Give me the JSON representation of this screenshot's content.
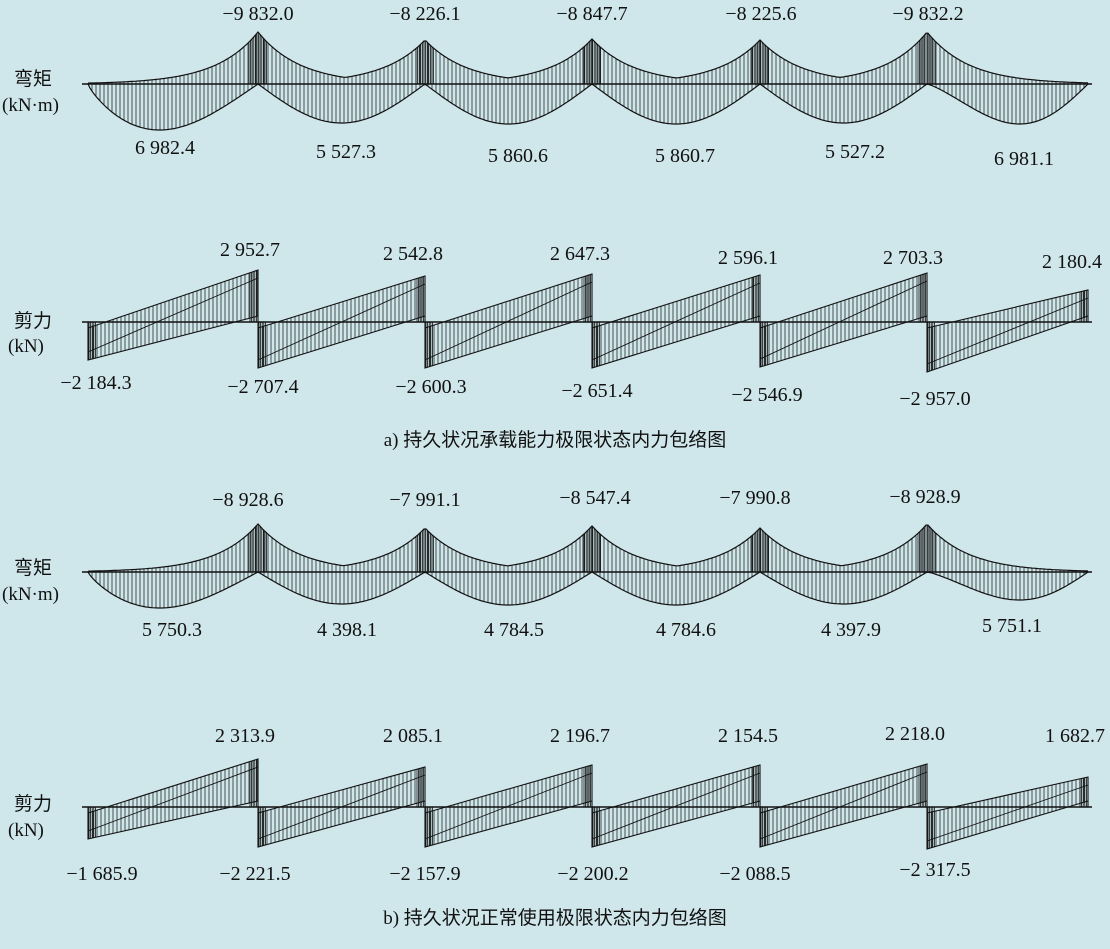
{
  "panels": [
    {
      "caption": "a) 持久状况承载能力极限状态内力包络图",
      "moment": {
        "label_line1": "弯矩",
        "label_line2": "(kN·m)",
        "support_values": [
          "−9 832.0",
          "−8 226.1",
          "−8 847.7",
          "−8 225.6",
          "−9 832.2"
        ],
        "span_values": [
          "6 982.4",
          "5 527.3",
          "5 860.6",
          "5 860.7",
          "5 527.2",
          "6 981.1"
        ]
      },
      "shear": {
        "label_line1": "剪力",
        "label_line2": "(kN)",
        "positive_values": [
          "2 952.7",
          "2 542.8",
          "2 647.3",
          "2 596.1",
          "2 703.3",
          "2 180.4"
        ],
        "negative_values": [
          "−2 184.3",
          "−2 707.4",
          "−2 600.3",
          "−2 651.4",
          "−2 546.9",
          "−2 957.0"
        ]
      }
    },
    {
      "caption": "b) 持久状况正常使用极限状态内力包络图",
      "moment": {
        "label_line1": "弯矩",
        "label_line2": "(kN·m)",
        "support_values": [
          "−8 928.6",
          "−7 991.1",
          "−8 547.4",
          "−7 990.8",
          "−8 928.9"
        ],
        "span_values": [
          "5 750.3",
          "4 398.1",
          "4 784.5",
          "4 784.6",
          "4 397.9",
          "5 751.1"
        ]
      },
      "shear": {
        "label_line1": "剪力",
        "label_line2": "(kN)",
        "positive_values": [
          "2 313.9",
          "2 085.1",
          "2 196.7",
          "2 154.5",
          "2 218.0",
          "1 682.7"
        ],
        "negative_values": [
          "−1 685.9",
          "−2 221.5",
          "−2 157.9",
          "−2 200.2",
          "−2 088.5",
          "−2 317.5"
        ]
      }
    }
  ]
}
